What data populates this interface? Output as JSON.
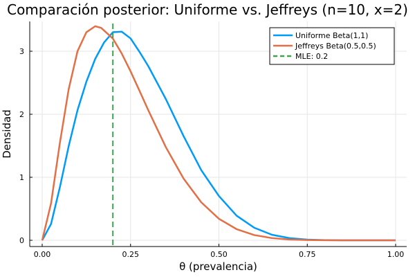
{
  "chart_data": {
    "type": "line",
    "title": "Comparación posterior: Uniforme vs. Jeffreys (n=10, x=2)",
    "xlabel": "θ (prevalencia)",
    "ylabel": "Densidad",
    "xlim": [
      0,
      1
    ],
    "ylim": [
      0,
      3.5
    ],
    "x_ticks": [
      0.0,
      0.25,
      0.5,
      0.75,
      1.0
    ],
    "x_tick_labels": [
      "0.00",
      "0.25",
      "0.50",
      "0.75",
      "1.00"
    ],
    "y_ticks": [
      0,
      1,
      2,
      3
    ],
    "y_tick_labels": [
      "0",
      "1",
      "2",
      "3"
    ],
    "grid": true,
    "legend_position": "top-right",
    "series": [
      {
        "name": "Uniforme Beta(1,1)",
        "color": "#009af9",
        "style": "solid",
        "x": [
          0.0,
          0.025,
          0.05,
          0.075,
          0.1,
          0.125,
          0.15,
          0.175,
          0.2,
          0.225,
          0.25,
          0.275,
          0.3,
          0.35,
          0.4,
          0.45,
          0.5,
          0.55,
          0.6,
          0.65,
          0.7,
          0.75,
          0.8,
          0.85,
          0.9,
          0.95,
          1.0
        ],
        "values": [
          0.0,
          0.259,
          0.841,
          1.495,
          2.066,
          2.517,
          2.879,
          3.139,
          3.302,
          3.311,
          3.204,
          2.993,
          2.765,
          2.239,
          1.653,
          1.113,
          0.703,
          0.391,
          0.199,
          0.088,
          0.034,
          0.011,
          0.003,
          0.0,
          0.0,
          0.0,
          0.0
        ]
      },
      {
        "name": "Jeffreys Beta(0.5,0.5)",
        "color": "#e26f46",
        "style": "solid",
        "x": [
          0.0,
          0.025,
          0.05,
          0.075,
          0.1,
          0.125,
          0.15,
          0.167,
          0.2,
          0.225,
          0.25,
          0.275,
          0.3,
          0.35,
          0.4,
          0.45,
          0.5,
          0.55,
          0.6,
          0.65,
          0.7,
          0.75,
          0.8,
          0.85,
          0.9,
          0.95,
          1.0
        ],
        "values": [
          0.0,
          0.585,
          1.545,
          2.399,
          3.002,
          3.302,
          3.397,
          3.37,
          3.201,
          2.964,
          2.682,
          2.376,
          2.066,
          1.476,
          0.98,
          0.603,
          0.341,
          0.177,
          0.083,
          0.035,
          0.013,
          0.004,
          0.001,
          0.0,
          0.0,
          0.0,
          0.0
        ]
      }
    ],
    "vline": {
      "name": "MLE: 0.2",
      "x": 0.2,
      "color": "#3da44d",
      "style": "dashed"
    }
  }
}
